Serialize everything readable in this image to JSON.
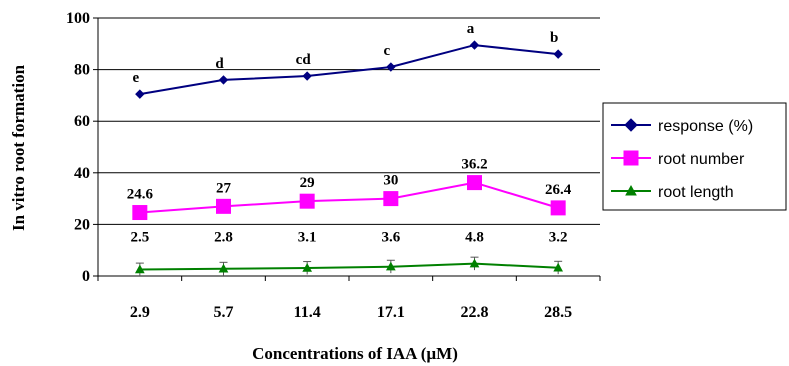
{
  "chart_data": {
    "type": "line",
    "title": "",
    "xlabel": "Concentrations of IAA (µM)",
    "ylabel": "In vitro  root formation",
    "categories": [
      "2.9",
      "5.7",
      "11.4",
      "17.1",
      "22.8",
      "28.5"
    ],
    "ylim": [
      0,
      100
    ],
    "yticks": [
      "0",
      "20",
      "40",
      "60",
      "80",
      "100"
    ],
    "grid": "horizontal",
    "legend_position": "right",
    "series": [
      {
        "name": "response (%)",
        "marker": "diamond",
        "color": "#000080",
        "values": [
          70.5,
          76,
          77.5,
          81,
          89.5,
          86
        ],
        "labels": [
          "e",
          "d",
          "cd",
          "c",
          "a",
          "b"
        ]
      },
      {
        "name": "root number",
        "marker": "square",
        "color": "#ff00ff",
        "values": [
          24.6,
          27,
          29,
          30,
          36.2,
          26.4
        ],
        "labels": [
          "24.6",
          "27",
          "29",
          "30",
          "36.2",
          "26.4"
        ]
      },
      {
        "name": "root length",
        "marker": "triangle",
        "color": "#008000",
        "values": [
          2.5,
          2.8,
          3.1,
          3.6,
          4.8,
          3.2
        ],
        "labels": [
          "2.5",
          "2.8",
          "3.1",
          "3.6",
          "4.8",
          "3.2"
        ],
        "error": [
          2.5,
          2.5,
          2.5,
          2.5,
          2.5,
          2.5
        ]
      }
    ]
  }
}
